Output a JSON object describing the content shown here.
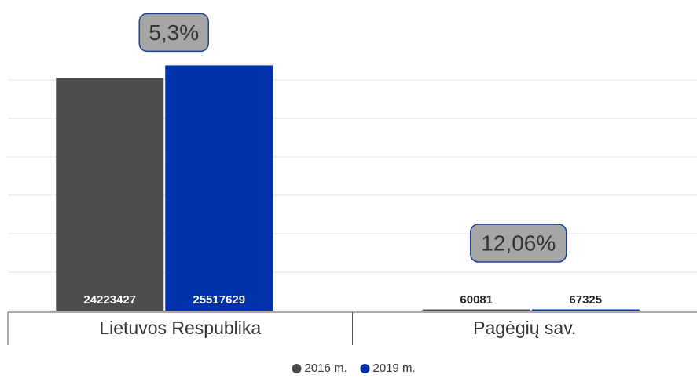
{
  "chart_data": {
    "type": "bar",
    "categories": [
      "Lietuvos Respublika",
      "Pagėgių sav."
    ],
    "series": [
      {
        "name": "2016 m.",
        "color": "#4d4d4d",
        "values": [
          24223427,
          60081
        ]
      },
      {
        "name": "2019 m.",
        "color": "#0033aa",
        "values": [
          25517629,
          67325
        ]
      }
    ],
    "annotations": [
      "5,3%",
      "12,06%"
    ],
    "ylim": [
      0,
      32000000
    ],
    "yticks": [
      0,
      4000000,
      8000000,
      12000000,
      16000000,
      20000000,
      24000000
    ],
    "grid": true,
    "legend": "bottom"
  }
}
